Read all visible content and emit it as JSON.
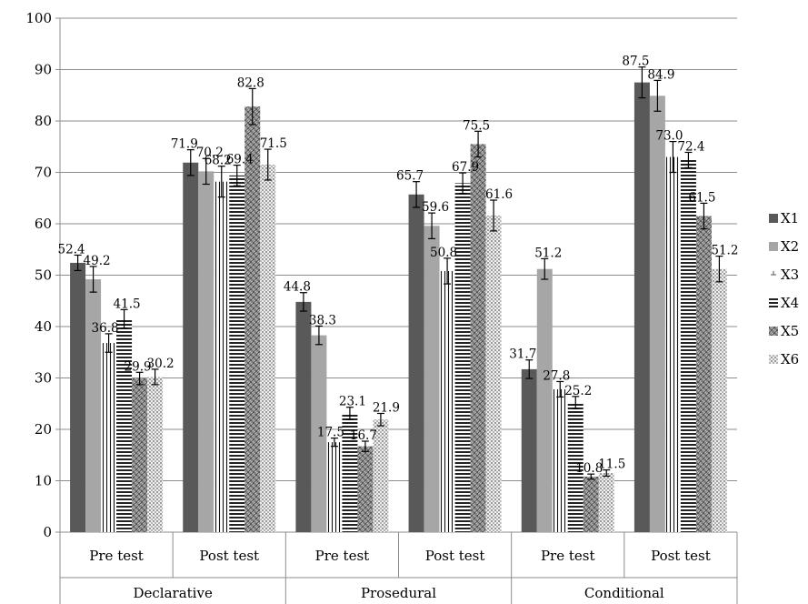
{
  "chart_data": {
    "type": "bar",
    "ylim": [
      0,
      100
    ],
    "yticks": [
      0,
      10,
      20,
      30,
      40,
      50,
      60,
      70,
      80,
      90,
      100
    ],
    "grid": true,
    "legend_position": "right",
    "groups": [
      {
        "label": "Declarative",
        "categories": [
          "Pre test",
          "Post test"
        ]
      },
      {
        "label": "Prosedural",
        "categories": [
          "Pre test",
          "Post test"
        ]
      },
      {
        "label": "Conditional",
        "categories": [
          "Pre test",
          "Post test"
        ]
      }
    ],
    "categories": [
      "Pre test",
      "Post test",
      "Pre test",
      "Post test",
      "Pre test",
      "Post test"
    ],
    "series": [
      {
        "name": "X1",
        "color": "#595959",
        "pattern": "solid-dark",
        "values": [
          52.4,
          71.9,
          44.8,
          65.7,
          31.7,
          87.5
        ],
        "errors": [
          1.5,
          2.5,
          1.8,
          2.5,
          1.8,
          3.0
        ],
        "labels": [
          "52.4",
          "71.9",
          "44.8",
          "65.7",
          "31.7",
          "87.5"
        ]
      },
      {
        "name": "X2",
        "color": "#a6a6a6",
        "pattern": "solid-light",
        "values": [
          49.2,
          70.2,
          38.3,
          59.6,
          51.2,
          84.9
        ],
        "errors": [
          2.5,
          2.5,
          1.8,
          2.5,
          2.0,
          3.0
        ],
        "labels": [
          "49.2",
          "70.2",
          "38.3",
          "59.6",
          "51.2",
          "84.9"
        ]
      },
      {
        "name": "X3",
        "color": "#ffffff",
        "pattern": "vertical",
        "values": [
          36.8,
          68.2,
          17.5,
          50.8,
          27.8,
          73.0
        ],
        "errors": [
          1.8,
          3.0,
          0.8,
          2.5,
          1.5,
          3.0
        ],
        "labels": [
          "36.8",
          "68.2",
          "17.5",
          "50.8",
          "27.8",
          "73.0"
        ]
      },
      {
        "name": "X4",
        "color": "#404040",
        "pattern": "horizontal",
        "values": [
          41.5,
          69.4,
          23.1,
          67.9,
          25.2,
          72.4
        ],
        "errors": [
          1.8,
          2.0,
          1.2,
          2.0,
          1.2,
          1.5
        ],
        "labels": [
          "41.5",
          "69.4",
          "23.1",
          "67.9",
          "25.2",
          "72.4"
        ]
      },
      {
        "name": "X5",
        "color": "#7f7f7f",
        "pattern": "weave",
        "values": [
          29.9,
          82.8,
          16.7,
          75.5,
          10.8,
          61.5
        ],
        "errors": [
          1.2,
          3.5,
          1.0,
          2.5,
          0.5,
          2.5
        ],
        "labels": [
          "29.9",
          "82.8",
          "16.7",
          "75.5",
          "10.8",
          "61.5"
        ]
      },
      {
        "name": "X6",
        "color": "#d9d9d9",
        "pattern": "dots",
        "values": [
          30.2,
          71.5,
          21.9,
          61.6,
          11.5,
          51.2
        ],
        "errors": [
          1.5,
          3.0,
          1.2,
          3.0,
          0.6,
          2.5
        ],
        "labels": [
          "30.2",
          "71.5",
          "21.9",
          "61.6",
          "11.5",
          "51.2"
        ]
      }
    ]
  }
}
